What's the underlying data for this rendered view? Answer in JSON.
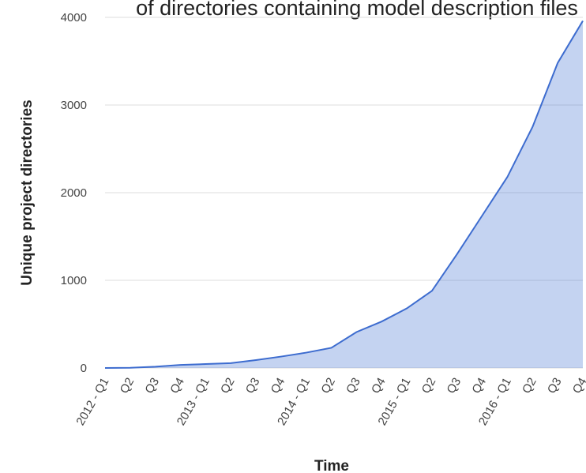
{
  "chart_data": {
    "type": "area",
    "title": "of directories containing model description files",
    "x_label": "Time",
    "y_label": "Unique project directories",
    "categories": [
      "2012 - Q1",
      "Q2",
      "Q3",
      "Q4",
      "2013 - Q1",
      "Q2",
      "Q3",
      "Q4",
      "2014 - Q1",
      "Q2",
      "Q3",
      "Q4",
      "2015 - Q1",
      "Q2",
      "Q3",
      "Q4",
      "2016 - Q1",
      "Q2",
      "Q3",
      "Q4"
    ],
    "values": [
      0,
      2,
      15,
      35,
      45,
      55,
      90,
      130,
      175,
      230,
      410,
      530,
      680,
      880,
      1300,
      1740,
      2180,
      2750,
      3480,
      3960
    ],
    "color": "#3d6ccf",
    "ylim": [
      0,
      4000
    ],
    "yticks": [
      0,
      1000,
      2000,
      3000,
      4000
    ],
    "grid": true
  }
}
